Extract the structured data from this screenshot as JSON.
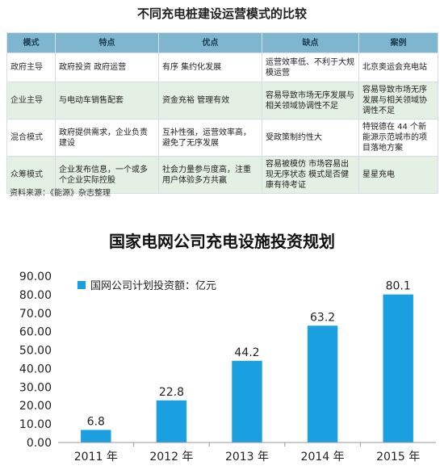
{
  "table": {
    "title": "不同充电桩建设运营模式的比较",
    "headers": [
      "模式",
      "特点",
      "优点",
      "缺点",
      "案例"
    ],
    "rows": [
      [
        "政府主导",
        "政府投资 政府运营",
        "有序 集约化发展",
        "运营效率低、不利于大规模运营",
        "北京奥运会充电站"
      ],
      [
        "企业主导",
        "与电动车销售配套",
        "资金充裕 管理有效",
        "容易导致市场无序发展与相关领域协调性不足",
        "容易导致市场无序发展与相关领域协调性不足"
      ],
      [
        "混合模式",
        "政府提供需求，企业负责建设",
        "互补性强，运营效率高，避免了无序发展",
        "受政策制约性大",
        "特锐德在 44 个新能源示范城市的项目落地方案"
      ],
      [
        "众筹模式",
        "企业发布信息，一个或多个企业实际控股",
        "社会力量参与度高，注重用户体验多方共赢",
        "容易被模仿 市场容易出现无序状态 模式是否健康有待考证",
        "星星充电"
      ]
    ],
    "source": "资料来源：《能源》杂志整理"
  },
  "chart_data": {
    "type": "bar",
    "title": "国家电网公司充电设施投资规划",
    "categories": [
      "2011 年",
      "2012 年",
      "2013 年",
      "2014 年",
      "2015 年"
    ],
    "series": [
      {
        "name": "国网公司计划投资额：亿元",
        "values": [
          6.8,
          22.8,
          44.2,
          63.2,
          80.1
        ]
      }
    ],
    "data_labels": [
      "6.8",
      "22.8",
      "44.2",
      "63.2",
      "80.1"
    ],
    "yticks": [
      "0.00",
      "10.00",
      "20.00",
      "30.00",
      "40.00",
      "50.00",
      "60.00",
      "70.00",
      "80.00",
      "90.00"
    ],
    "ylim": [
      0,
      90
    ],
    "xlabel": "",
    "ylabel": "",
    "grid": false,
    "legend_position": "top-left",
    "bar_color": "#1a9fe0"
  }
}
